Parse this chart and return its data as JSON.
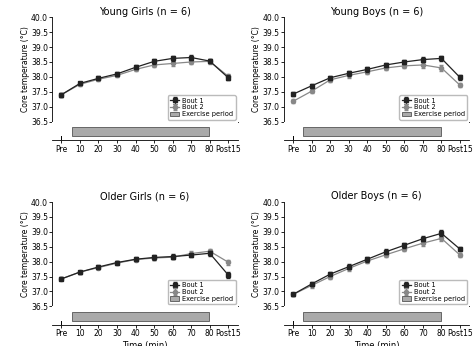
{
  "x_labels": [
    "Pre",
    "10",
    "20",
    "30",
    "40",
    "50",
    "60",
    "70",
    "80",
    "Post15"
  ],
  "x_numeric": [
    0,
    1,
    2,
    3,
    4,
    5,
    6,
    7,
    8,
    9
  ],
  "panels": [
    {
      "title": "Young Girls (n = 6)",
      "bout1": [
        37.4,
        37.78,
        37.95,
        38.1,
        38.32,
        38.52,
        38.62,
        38.65,
        38.53,
        37.97
      ],
      "bout1_err": [
        0.06,
        0.06,
        0.07,
        0.07,
        0.07,
        0.08,
        0.08,
        0.08,
        0.08,
        0.09
      ],
      "bout2": [
        37.4,
        37.75,
        37.92,
        38.05,
        38.25,
        38.4,
        38.45,
        38.5,
        38.52,
        38.02
      ],
      "bout2_err": [
        0.06,
        0.06,
        0.07,
        0.07,
        0.07,
        0.08,
        0.08,
        0.08,
        0.08,
        0.09
      ]
    },
    {
      "title": "Young Boys (n = 6)",
      "bout1": [
        37.42,
        37.7,
        37.97,
        38.12,
        38.25,
        38.4,
        38.5,
        38.58,
        38.62,
        37.98
      ],
      "bout1_err": [
        0.06,
        0.07,
        0.07,
        0.08,
        0.08,
        0.08,
        0.08,
        0.09,
        0.09,
        0.07
      ],
      "bout2": [
        37.18,
        37.52,
        37.9,
        38.05,
        38.17,
        38.3,
        38.37,
        38.4,
        38.3,
        37.72
      ],
      "bout2_err": [
        0.06,
        0.07,
        0.07,
        0.08,
        0.08,
        0.08,
        0.08,
        0.09,
        0.09,
        0.07
      ]
    },
    {
      "title": "Older Girls (n = 6)",
      "bout1": [
        37.42,
        37.65,
        37.82,
        37.97,
        38.08,
        38.14,
        38.17,
        38.22,
        38.28,
        37.55
      ],
      "bout1_err": [
        0.05,
        0.05,
        0.06,
        0.06,
        0.06,
        0.07,
        0.07,
        0.07,
        0.08,
        0.09
      ],
      "bout2": [
        37.42,
        37.65,
        37.8,
        37.95,
        38.07,
        38.12,
        38.15,
        38.27,
        38.35,
        37.98
      ],
      "bout2_err": [
        0.05,
        0.05,
        0.06,
        0.06,
        0.06,
        0.07,
        0.07,
        0.07,
        0.08,
        0.09
      ]
    },
    {
      "title": "Older Boys (n = 6)",
      "bout1": [
        36.9,
        37.25,
        37.58,
        37.83,
        38.08,
        38.33,
        38.55,
        38.77,
        38.95,
        38.42
      ],
      "bout1_err": [
        0.06,
        0.07,
        0.07,
        0.08,
        0.08,
        0.08,
        0.09,
        0.09,
        0.1,
        0.08
      ],
      "bout2": [
        36.9,
        37.2,
        37.5,
        37.77,
        38.02,
        38.23,
        38.43,
        38.62,
        38.78,
        38.22
      ],
      "bout2_err": [
        0.06,
        0.07,
        0.07,
        0.08,
        0.08,
        0.08,
        0.09,
        0.09,
        0.1,
        0.08
      ]
    }
  ],
  "ylim": [
    36.5,
    40.0
  ],
  "yticks": [
    36.5,
    37.0,
    37.5,
    38.0,
    38.5,
    39.0,
    39.5,
    40.0
  ],
  "ytick_labels": [
    "36.5",
    "37.0",
    "37.5",
    "38.0",
    "38.5",
    "39.0",
    "39.5",
    "40.0"
  ],
  "color_bout1": "#222222",
  "color_bout2": "#888888",
  "marker_bout1": "s",
  "marker_bout2": "o",
  "ylabel": "Core temperature (°C)",
  "xlabel": "Time (min)",
  "bar_color": "#aaaaaa",
  "bar_edge": "#666666",
  "legend_loc": "lower center"
}
